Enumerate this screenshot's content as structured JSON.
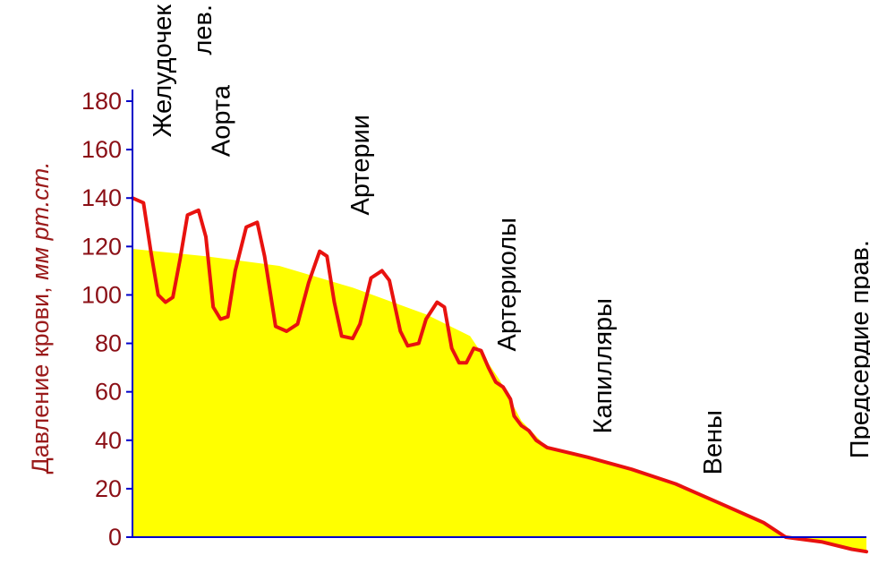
{
  "chart_data": {
    "type": "area",
    "ylabel_plain": "Давление крови, ",
    "ylabel_italic": "мм рт.ст.",
    "yticks": [
      0,
      20,
      40,
      60,
      80,
      100,
      120,
      140,
      160,
      180
    ],
    "ylim": [
      0,
      185
    ],
    "xlim": [
      0,
      100
    ],
    "regions": [
      {
        "label": "Желудочек",
        "x": 4
      },
      {
        "label": "лев.",
        "x": 9.5
      },
      {
        "label": "Аорта",
        "x": 12
      },
      {
        "label": "Артерии",
        "x": 31
      },
      {
        "label": "Артериолы",
        "x": 51
      },
      {
        "label": "Капилляры",
        "x": 64
      },
      {
        "label": "Вены",
        "x": 79
      },
      {
        "label": "Предсердие прав.",
        "x": 99
      }
    ],
    "series": [
      {
        "role": "pulsatile pressure",
        "points": [
          [
            0,
            140
          ],
          [
            1.5,
            138
          ],
          [
            2.5,
            118
          ],
          [
            3.5,
            100
          ],
          [
            4.5,
            97
          ],
          [
            5.5,
            99
          ],
          [
            6.5,
            115
          ],
          [
            7.5,
            133
          ],
          [
            9,
            135
          ],
          [
            10,
            124
          ],
          [
            11,
            95
          ],
          [
            12,
            90
          ],
          [
            13,
            91
          ],
          [
            14,
            110
          ],
          [
            15.5,
            128
          ],
          [
            17,
            130
          ],
          [
            18,
            116
          ],
          [
            19.5,
            87
          ],
          [
            21,
            85
          ],
          [
            22.5,
            88
          ],
          [
            24,
            105
          ],
          [
            25.5,
            118
          ],
          [
            26.5,
            116
          ],
          [
            27.5,
            97
          ],
          [
            28.5,
            83
          ],
          [
            30,
            82
          ],
          [
            31,
            88
          ],
          [
            32.5,
            107
          ],
          [
            34,
            110
          ],
          [
            35,
            106
          ],
          [
            36.5,
            85
          ],
          [
            37.5,
            79
          ],
          [
            39,
            80
          ],
          [
            40,
            90
          ],
          [
            41.5,
            97
          ],
          [
            42.5,
            95
          ],
          [
            43.5,
            78
          ],
          [
            44.5,
            72
          ],
          [
            45.5,
            72
          ],
          [
            46.5,
            78
          ],
          [
            47.5,
            77
          ],
          [
            48.5,
            70
          ],
          [
            49.5,
            64
          ],
          [
            50.5,
            62
          ],
          [
            51.5,
            57
          ],
          [
            52,
            50
          ],
          [
            53,
            46
          ],
          [
            54,
            44
          ],
          [
            55,
            40
          ],
          [
            56.5,
            37
          ],
          [
            62,
            33
          ],
          [
            68,
            28
          ],
          [
            74,
            22
          ],
          [
            80,
            14
          ],
          [
            86,
            6
          ],
          [
            89,
            0
          ],
          [
            94,
            -2
          ],
          [
            98,
            -5
          ],
          [
            100,
            -6
          ]
        ]
      },
      {
        "role": "mean pressure",
        "points": [
          [
            0,
            119
          ],
          [
            10,
            116
          ],
          [
            20,
            112
          ],
          [
            30,
            103
          ],
          [
            40,
            92
          ],
          [
            46,
            83
          ],
          [
            50,
            65
          ],
          [
            53,
            48
          ],
          [
            56.5,
            37
          ],
          [
            62,
            33
          ],
          [
            68,
            28
          ],
          [
            74,
            22
          ],
          [
            80,
            14
          ],
          [
            86,
            6
          ],
          [
            89,
            0
          ],
          [
            94,
            -2
          ],
          [
            98,
            -5
          ],
          [
            100,
            -6
          ]
        ]
      }
    ],
    "colors": {
      "line": "#e8120f",
      "fill": "#ffff00",
      "axis": "#0000c8",
      "tick_text": "#8b0f16",
      "ylabel": "#9a1a1a",
      "region_text": "#000000"
    }
  }
}
